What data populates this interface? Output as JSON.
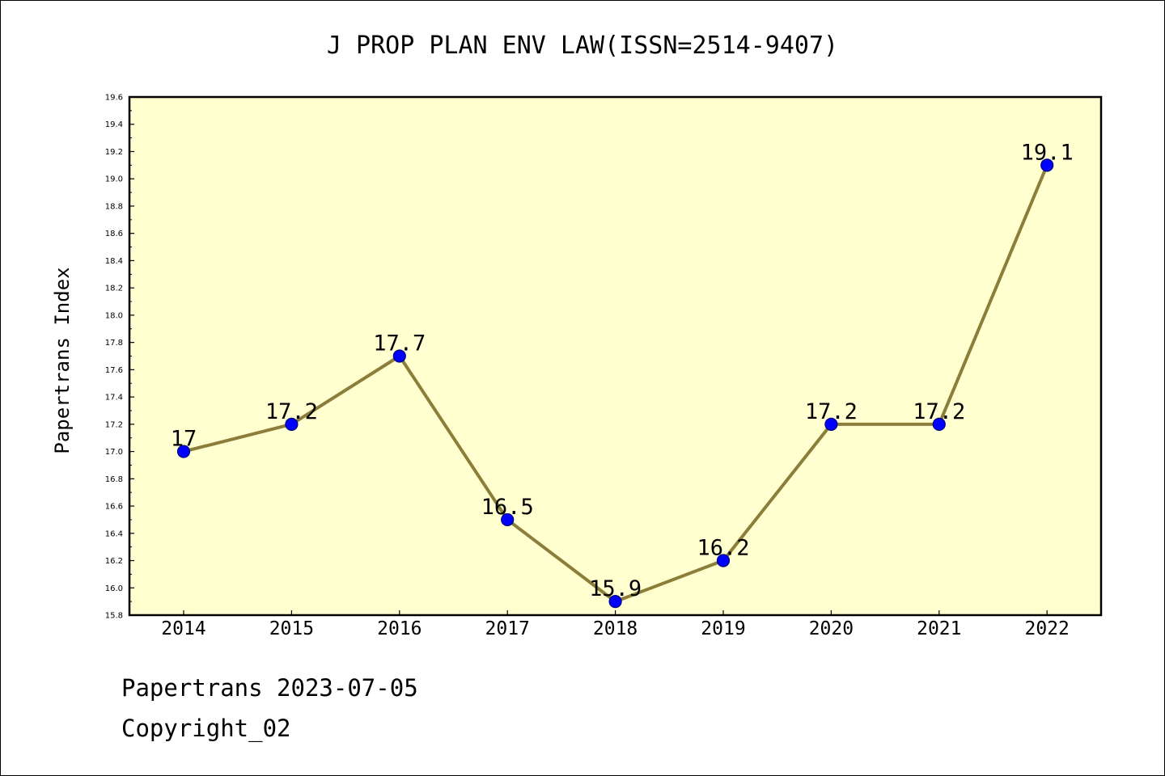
{
  "chart_data": {
    "type": "line",
    "title": "J PROP PLAN ENV LAW(ISSN=2514-9407)",
    "xlabel": "",
    "ylabel": "Papertrans Index",
    "categories": [
      "2014",
      "2015",
      "2016",
      "2017",
      "2018",
      "2019",
      "2020",
      "2021",
      "2022"
    ],
    "series": [
      {
        "values": [
          17,
          17.2,
          17.7,
          16.5,
          15.9,
          16.2,
          17.2,
          17.2,
          19.1
        ],
        "labels": [
          "17",
          "17.2",
          "17.7",
          "16.5",
          "15.9",
          "16.2",
          "17.2",
          "17.2",
          "19.1"
        ]
      }
    ],
    "ylim": [
      15.8,
      19.6
    ],
    "yticks": [
      "15.8",
      "16.0",
      "16.2",
      "16.4",
      "16.6",
      "16.8",
      "17.0",
      "17.2",
      "17.4",
      "17.6",
      "17.8",
      "18.0",
      "18.2",
      "18.4",
      "18.6",
      "18.8",
      "19.0",
      "19.2",
      "19.4",
      "19.6"
    ],
    "grid": false,
    "colors": {
      "plot_background": "#ffffd0",
      "line": "#8b7d3a",
      "marker": "#0000ff",
      "marker_edge": "#000080"
    }
  },
  "footer": {
    "line1": "Papertrans 2023-07-05",
    "line2": "Copyright_02"
  }
}
